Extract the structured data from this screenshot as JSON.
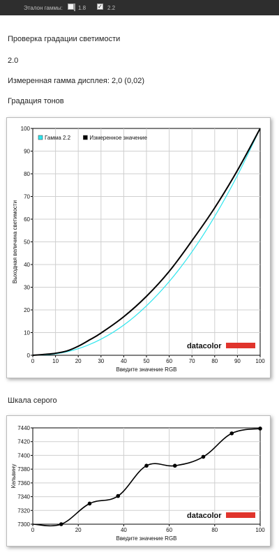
{
  "topbar": {
    "gamma_label": "Эталон гаммы:",
    "options": [
      {
        "label": "1.8",
        "checked": false
      },
      {
        "label": "2.2",
        "checked": true
      }
    ]
  },
  "sections": {
    "luminance_title": "Проверка градации светимости",
    "luminance_value": "2.0",
    "measured_gamma": "Измеренная гамма дисплея: 2,0 (0,02)",
    "tone_title": "Градация тонов",
    "gray_title": "Шкала серого"
  },
  "logo": {
    "text": "datacolor",
    "bar_color": "#e0342c"
  },
  "chart_data": [
    {
      "type": "line",
      "xlabel": "Введите значение RGB",
      "ylabel": "Выходная величина светимости",
      "xlim": [
        0,
        100
      ],
      "ylim": [
        0,
        100
      ],
      "xticks": [
        0,
        10,
        20,
        30,
        40,
        50,
        60,
        70,
        80,
        90,
        100
      ],
      "yticks": [
        0,
        10,
        20,
        30,
        40,
        50,
        60,
        70,
        80,
        90,
        100
      ],
      "grid": true,
      "legend_position": "top-left",
      "series": [
        {
          "name": "Гамма 2.2",
          "color": "#2ee6ee",
          "x": [
            0,
            10,
            20,
            30,
            40,
            50,
            60,
            70,
            80,
            90,
            100
          ],
          "y": [
            0,
            0.6,
            2.9,
            7.1,
            13.3,
            21.8,
            32.5,
            45.6,
            61.2,
            79.3,
            100
          ]
        },
        {
          "name": "Измеренное значение",
          "color": "#000000",
          "x": [
            0,
            5,
            10,
            15,
            20,
            25,
            30,
            40,
            50,
            60,
            70,
            80,
            90,
            100
          ],
          "y": [
            0,
            0.4,
            0.9,
            1.9,
            4.0,
            6.8,
            9.8,
            17.0,
            26.0,
            37.0,
            50.5,
            65.0,
            81.5,
            100
          ]
        }
      ]
    },
    {
      "type": "line",
      "xlabel": "Введите значение RGB",
      "ylabel": "Кельвину",
      "xlim": [
        0,
        100
      ],
      "ylim": [
        7300,
        7440
      ],
      "xticks": [
        0,
        20,
        40,
        60,
        80,
        100
      ],
      "yticks": [
        7300,
        7320,
        7340,
        7360,
        7380,
        7400,
        7420,
        7440
      ],
      "grid": true,
      "series": [
        {
          "name": "",
          "color": "#000000",
          "x": [
            0,
            12.5,
            25,
            37.5,
            50,
            62.5,
            75,
            87.5,
            100
          ],
          "y": [
            7300,
            7300,
            7330,
            7341,
            7385,
            7385,
            7398,
            7432,
            7439
          ],
          "markers_from_index": 1
        }
      ]
    }
  ]
}
